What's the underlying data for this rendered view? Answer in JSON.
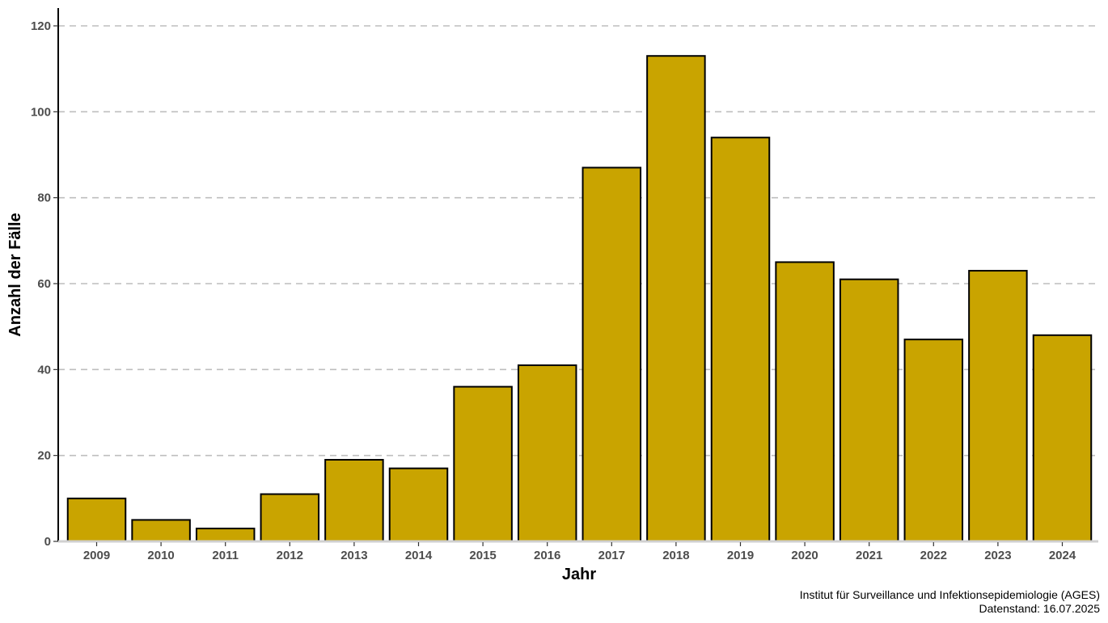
{
  "chart_data": {
    "type": "bar",
    "title": "",
    "xlabel": "Jahr",
    "ylabel": "Anzahl der Fälle",
    "categories": [
      "2009",
      "2010",
      "2011",
      "2012",
      "2013",
      "2014",
      "2015",
      "2016",
      "2017",
      "2018",
      "2019",
      "2020",
      "2021",
      "2022",
      "2023",
      "2024"
    ],
    "values": [
      10,
      5,
      3,
      11,
      19,
      17,
      36,
      41,
      87,
      113,
      94,
      65,
      61,
      47,
      63,
      48
    ],
    "ylim": [
      0,
      120
    ],
    "yticks": [
      0,
      20,
      40,
      60,
      80,
      100,
      120
    ],
    "grid": "horizontal dashed",
    "legend": "none",
    "colors": {
      "bar_fill": "#C9A400",
      "bar_stroke": "#000000",
      "grid": "#BEBEBE",
      "axis": "#000000"
    }
  },
  "caption": {
    "line1": "Institut für Surveillance und Infektionsepidemiologie (AGES)",
    "line2": "Datenstand: 16.07.2025"
  }
}
